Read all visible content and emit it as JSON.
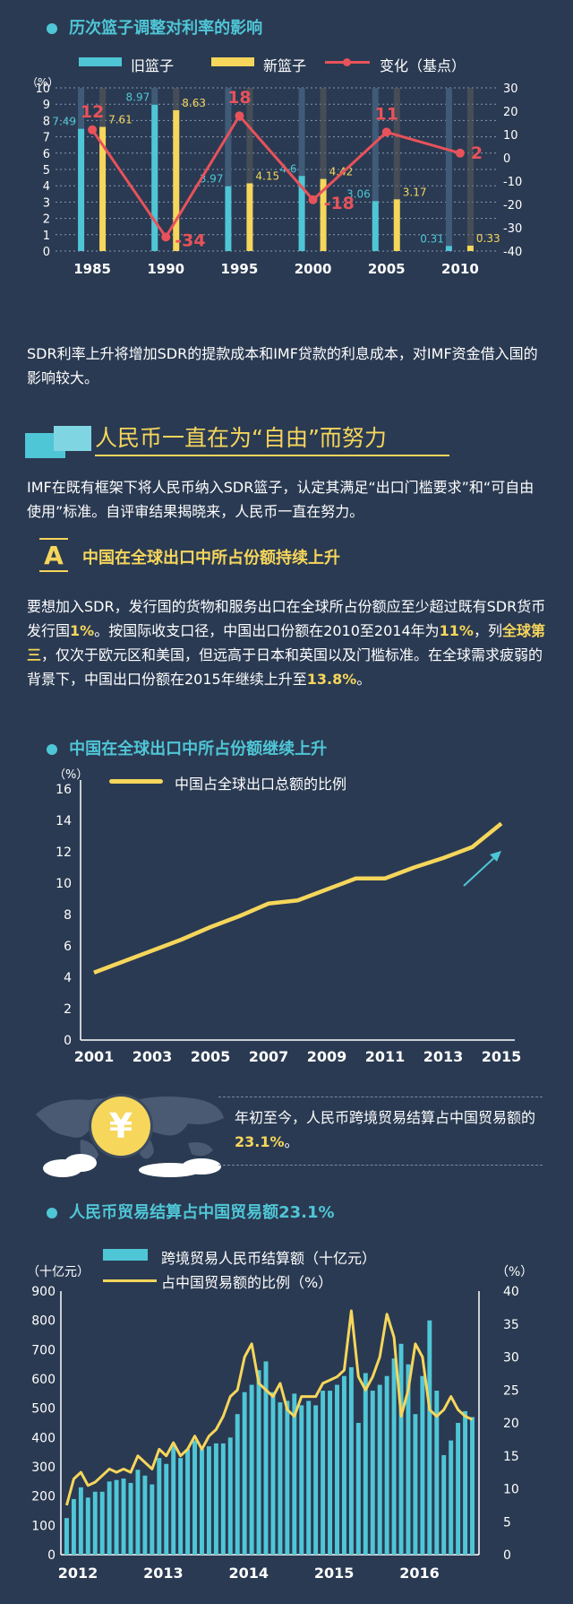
{
  "section1": {
    "title": "历次篮子调整对利率的影响",
    "legend": {
      "old": "旧篮子",
      "new": "新篮子",
      "change": "变化（基点）"
    },
    "y_unit": "（%）"
  },
  "paragraph1": "SDR利率上升将增加SDR的提款成本和IMF贷款的利息成本，对IMF资金借入国的影响较大。",
  "banner": {
    "title": "人民币一直在为“自由”而努力"
  },
  "paragraph2": "IMF在既有框架下将人民币纳入SDR篮子，认定其满足“出口门槛要求”和“可自由使用”标准。自评审结果揭晓来，人民币一直在努力。",
  "subsection_a": {
    "badge": "A",
    "title": "中国在全球出口中所占份额持续上升"
  },
  "paragraph3": {
    "p1": "要想加入SDR，发行国的货物和服务出口在全球所占份额应至少超过既有SDR货币发行国",
    "h1": "1%",
    "p2": "。按国际收支口径，中国出口份额在2010至2014年为",
    "h2": "11%",
    "p3": "，列",
    "h3": "全球第三",
    "p4": "，仅次于欧元区和美国，但远高于日本和英国以及门槛标准。在全球需求疲弱的背景下，中国出口份额在2015年继续上升至",
    "h4": "13.8%",
    "p5": "。"
  },
  "section2": {
    "title": "中国在全球出口中所占份额继续上升",
    "y_unit": "（%）",
    "legend": "中国占全球出口总额的比例"
  },
  "callout": {
    "symbol": "¥",
    "text_before": "年初至今，人民币跨境贸易结算占中国贸易额的",
    "highlight": "23.1%",
    "text_after": "。"
  },
  "section3": {
    "title": "人民币贸易结算占中国贸易额23.1%",
    "left_unit": "（十亿元）",
    "right_unit": "（%）",
    "legend_bar": "跨境贸易人民币结算额（十亿元）",
    "legend_line": "占中国贸易额的比例（%）"
  },
  "colors": {
    "background": "#2a3a52",
    "cyan": "#4fc6d6",
    "yellow": "#f6d65b",
    "red": "#e8525a"
  },
  "chart_data": [
    {
      "type": "bar",
      "title": "历次篮子调整对利率的影响",
      "categories": [
        "1985",
        "1990",
        "1995",
        "2000",
        "2005",
        "2010"
      ],
      "series": [
        {
          "name": "旧篮子",
          "values": [
            7.49,
            8.97,
            3.97,
            4.6,
            3.06,
            0.31
          ]
        },
        {
          "name": "新篮子",
          "values": [
            7.61,
            8.63,
            4.15,
            4.42,
            3.17,
            0.33
          ]
        },
        {
          "name": "变化（基点）",
          "type": "line",
          "axis": "right",
          "values": [
            12,
            -34,
            18,
            -18,
            11,
            2
          ]
        }
      ],
      "ylim": [
        0,
        10
      ],
      "yticks": [
        "0",
        "1",
        "2",
        "3",
        "4",
        "5",
        "6",
        "7",
        "8",
        "9",
        "10"
      ],
      "y2lim": [
        -40,
        30
      ],
      "y2ticks": [
        "30",
        "20",
        "10",
        "0",
        "-10",
        "-20",
        "-30",
        "-40"
      ],
      "ylabel": "（%）"
    },
    {
      "type": "line",
      "title": "中国在全球出口中所占份额继续上升",
      "x": [
        2001,
        2002,
        2003,
        2004,
        2005,
        2006,
        2007,
        2008,
        2009,
        2010,
        2011,
        2012,
        2013,
        2014,
        2015
      ],
      "series": [
        {
          "name": "中国占全球出口总额的比例",
          "values": [
            4.3,
            5.0,
            5.7,
            6.4,
            7.2,
            7.9,
            8.7,
            8.9,
            9.6,
            10.3,
            10.3,
            11.0,
            11.6,
            12.3,
            13.8
          ]
        }
      ],
      "xticks": [
        "2001",
        "2003",
        "2005",
        "2007",
        "2009",
        "2011",
        "2013",
        "2015"
      ],
      "yticks": [
        "0",
        "2",
        "4",
        "6",
        "8",
        "10",
        "12",
        "14",
        "16"
      ],
      "ylim": [
        0,
        16
      ],
      "ylabel": "（%）"
    },
    {
      "type": "bar",
      "title": "人民币贸易结算占中国贸易额23.1%",
      "categories": [
        "2012-01",
        "2012-02",
        "2012-03",
        "2012-04",
        "2012-05",
        "2012-06",
        "2012-07",
        "2012-08",
        "2012-09",
        "2012-10",
        "2012-11",
        "2012-12",
        "2013-01",
        "2013-02",
        "2013-03",
        "2013-04",
        "2013-05",
        "2013-06",
        "2013-07",
        "2013-08",
        "2013-09",
        "2013-10",
        "2013-11",
        "2013-12",
        "2014-01",
        "2014-02",
        "2014-03",
        "2014-04",
        "2014-05",
        "2014-06",
        "2014-07",
        "2014-08",
        "2014-09",
        "2014-10",
        "2014-11",
        "2014-12",
        "2015-01",
        "2015-02",
        "2015-03",
        "2015-04",
        "2015-05",
        "2015-06",
        "2015-07",
        "2015-08",
        "2015-09",
        "2015-10",
        "2015-11",
        "2015-12",
        "2016-01",
        "2016-02",
        "2016-03",
        "2016-04",
        "2016-05",
        "2016-06",
        "2016-07",
        "2016-08",
        "2016-09",
        "2016-10"
      ],
      "series": [
        {
          "name": "跨境贸易人民币结算额（十亿元）",
          "values": [
            125,
            190,
            230,
            195,
            215,
            215,
            250,
            255,
            260,
            245,
            290,
            270,
            240,
            330,
            310,
            380,
            330,
            360,
            390,
            360,
            370,
            380,
            380,
            400,
            480,
            555,
            580,
            630,
            660,
            555,
            520,
            525,
            550,
            510,
            525,
            510,
            560,
            560,
            580,
            610,
            640,
            450,
            620,
            560,
            580,
            610,
            670,
            720,
            650,
            480,
            610,
            800,
            560,
            340,
            390,
            450,
            490,
            470
          ]
        },
        {
          "name": "占中国贸易额的比例（%）",
          "type": "line",
          "axis": "right",
          "values": [
            7.5,
            11.5,
            12.5,
            10.5,
            11,
            12,
            13,
            12.5,
            13,
            12.5,
            15,
            14,
            13,
            16,
            15,
            17,
            15,
            16,
            18,
            16,
            18,
            19,
            21,
            24,
            25,
            30,
            32,
            26,
            25,
            24,
            26,
            22,
            21,
            24,
            24,
            24,
            26,
            26.5,
            27,
            28,
            37,
            27,
            25,
            27,
            30,
            36.5,
            33,
            21,
            25,
            32,
            30,
            22,
            21,
            22,
            24,
            22,
            21,
            20.5
          ]
        }
      ],
      "xticks": [
        "2012",
        "2013",
        "2014",
        "2015",
        "2016"
      ],
      "yticks": [
        "0",
        "100",
        "200",
        "300",
        "400",
        "500",
        "600",
        "700",
        "800",
        "900"
      ],
      "y2ticks": [
        "0",
        "5",
        "10",
        "15",
        "20",
        "25",
        "30",
        "35",
        "40"
      ],
      "ylim": [
        0,
        900
      ],
      "y2lim": [
        0,
        40
      ]
    }
  ]
}
